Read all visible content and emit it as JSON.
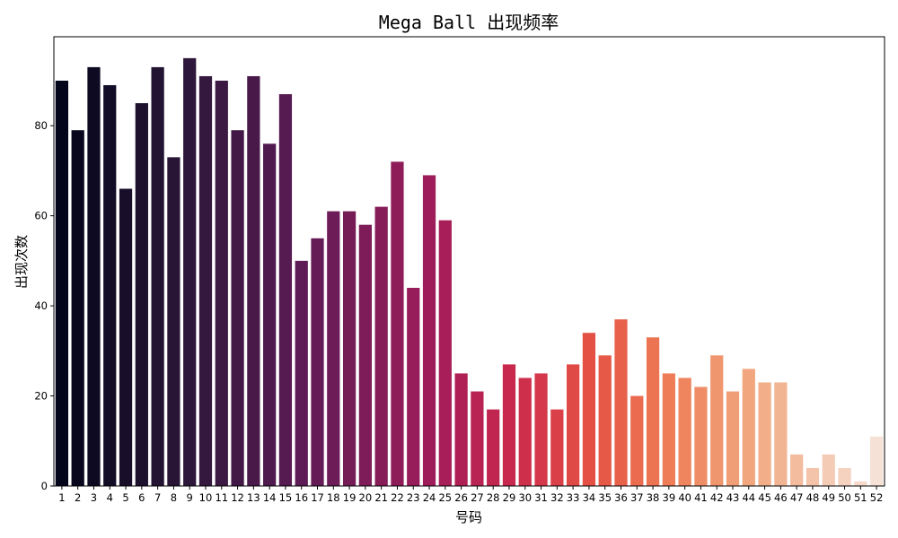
{
  "chart_data": {
    "type": "bar",
    "title": "Mega Ball 出现频率",
    "xlabel": "号码",
    "ylabel": "出现次数",
    "ylim": [
      0,
      99.75
    ],
    "yticks": [
      0,
      20,
      40,
      60,
      80
    ],
    "grid": false,
    "palette": "rocket",
    "categories": [
      "1",
      "2",
      "3",
      "4",
      "5",
      "6",
      "7",
      "8",
      "9",
      "10",
      "11",
      "12",
      "13",
      "14",
      "15",
      "16",
      "17",
      "18",
      "19",
      "20",
      "21",
      "22",
      "23",
      "24",
      "25",
      "26",
      "27",
      "28",
      "29",
      "30",
      "31",
      "32",
      "33",
      "34",
      "35",
      "36",
      "37",
      "38",
      "39",
      "40",
      "41",
      "42",
      "43",
      "44",
      "45",
      "46",
      "47",
      "48",
      "49",
      "50",
      "51",
      "52"
    ],
    "values": [
      90,
      79,
      93,
      89,
      66,
      85,
      93,
      73,
      95,
      91,
      90,
      79,
      91,
      76,
      87,
      50,
      55,
      61,
      61,
      58,
      62,
      72,
      44,
      69,
      59,
      25,
      21,
      17,
      27,
      24,
      25,
      17,
      27,
      34,
      29,
      37,
      20,
      33,
      25,
      24,
      22,
      29,
      21,
      26,
      23,
      23,
      7,
      4,
      7,
      4,
      1,
      11
    ]
  }
}
